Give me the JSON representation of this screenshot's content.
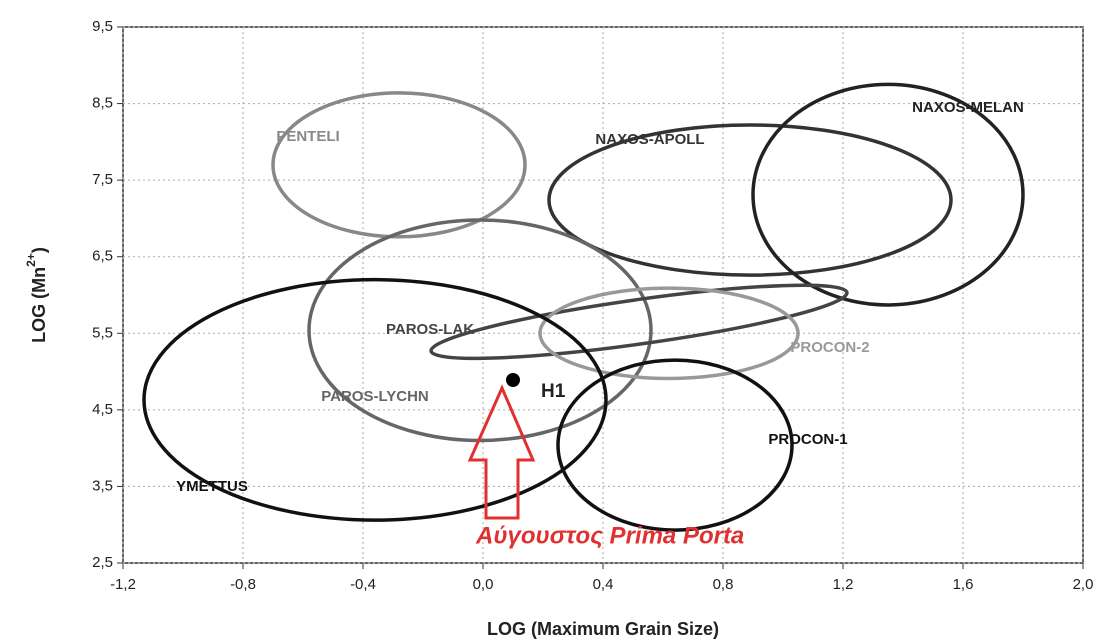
{
  "chart_data": {
    "type": "scatter",
    "xlabel": "LOG (Maximum Grain Size)",
    "ylabel": [
      "LOG (Mn",
      "2+",
      ")"
    ],
    "xlim": [
      -1.2,
      2.0
    ],
    "ylim": [
      2.5,
      9.5
    ],
    "xticks": [
      {
        "value": -1.2,
        "label": "-1,2"
      },
      {
        "value": -0.8,
        "label": "-0,8"
      },
      {
        "value": -0.4,
        "label": "-0,4"
      },
      {
        "value": 0.0,
        "label": "0,0"
      },
      {
        "value": 0.4,
        "label": "0,4"
      },
      {
        "value": 0.8,
        "label": "0,8"
      },
      {
        "value": 1.2,
        "label": "1,2"
      },
      {
        "value": 1.6,
        "label": "1,6"
      },
      {
        "value": 2.0,
        "label": "2,0"
      }
    ],
    "yticks": [
      {
        "value": 2.5,
        "label": "2,5"
      },
      {
        "value": 3.5,
        "label": "3,5"
      },
      {
        "value": 4.5,
        "label": "4,5"
      },
      {
        "value": 5.5,
        "label": "5,5"
      },
      {
        "value": 6.5,
        "label": "6,5"
      },
      {
        "value": 7.5,
        "label": "7,5"
      },
      {
        "value": 8.5,
        "label": "8,5"
      },
      {
        "value": 9.5,
        "label": "9,5"
      }
    ],
    "grid": true,
    "regions": [
      {
        "name": "PENTELI",
        "color": "#888888",
        "cx": -0.28,
        "cy": 7.7,
        "rx": 0.42,
        "ry": 0.94,
        "angle": 0
      },
      {
        "name": "NAXOS-APOLL",
        "color": "#333333",
        "cx": 0.89,
        "cy": 7.24,
        "rx": 0.67,
        "ry": 0.98,
        "angle": 0
      },
      {
        "name": "NAXOS-MELAN",
        "color": "#222222",
        "cx": 1.35,
        "cy": 7.31,
        "rx": 0.45,
        "ry": 1.44,
        "angle": 0
      },
      {
        "name": "PAROS-LYCHN",
        "color": "#666666",
        "cx": -0.01,
        "cy": 5.54,
        "rx": 0.57,
        "ry": 1.44,
        "angle": 0
      },
      {
        "name": "PAROS-LAK",
        "color": "#444444",
        "cx": 0.52,
        "cy": 5.65,
        "rx": 0.7,
        "ry": 0.29,
        "angle": -8
      },
      {
        "name": "PROCON-2",
        "color": "#999999",
        "cx": 0.62,
        "cy": 5.5,
        "rx": 0.43,
        "ry": 0.59,
        "angle": 0
      },
      {
        "name": "PROCON-1",
        "color": "#111111",
        "cx": 0.64,
        "cy": 4.04,
        "rx": 0.39,
        "ry": 1.11,
        "angle": 0
      },
      {
        "name": "YMETTUS",
        "color": "#111111",
        "cx": -0.36,
        "cy": 4.63,
        "rx": 0.77,
        "ry": 1.57,
        "angle": 0
      }
    ],
    "series": [
      {
        "name": "H1",
        "color": "#000000",
        "x": [
          0.1
        ],
        "values": [
          4.89
        ]
      }
    ],
    "annotation": "Αύγουστος Prima Porta"
  }
}
